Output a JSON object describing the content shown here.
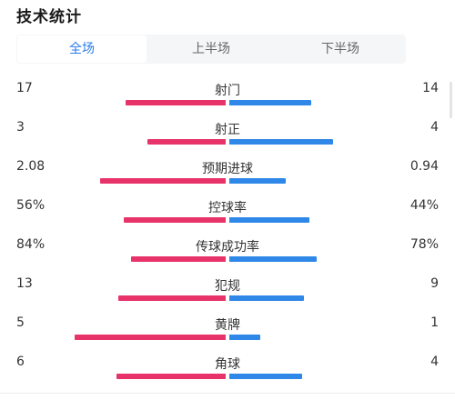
{
  "header": {
    "title": "技术统计"
  },
  "tabs": [
    {
      "label": "全场",
      "active": true
    },
    {
      "label": "上半场",
      "active": false
    },
    {
      "label": "下半场",
      "active": false
    }
  ],
  "colors": {
    "home": "#e8336a",
    "away": "#2f87e8",
    "accent": "#2b7de9"
  },
  "stats": [
    {
      "label": "射门",
      "home": "17",
      "away": "14",
      "home_share": 0.55,
      "away_share": 0.45
    },
    {
      "label": "射正",
      "home": "3",
      "away": "4",
      "home_share": 0.43,
      "away_share": 0.57
    },
    {
      "label": "预期进球",
      "home": "2.08",
      "away": "0.94",
      "home_share": 0.69,
      "away_share": 0.31
    },
    {
      "label": "控球率",
      "home": "56%",
      "away": "44%",
      "home_share": 0.56,
      "away_share": 0.44
    },
    {
      "label": "传球成功率",
      "home": "84%",
      "away": "78%",
      "home_share": 0.52,
      "away_share": 0.48
    },
    {
      "label": "犯规",
      "home": "13",
      "away": "9",
      "home_share": 0.59,
      "away_share": 0.41
    },
    {
      "label": "黄牌",
      "home": "5",
      "away": "1",
      "home_share": 0.83,
      "away_share": 0.17
    },
    {
      "label": "角球",
      "home": "6",
      "away": "4",
      "home_share": 0.6,
      "away_share": 0.4
    }
  ]
}
